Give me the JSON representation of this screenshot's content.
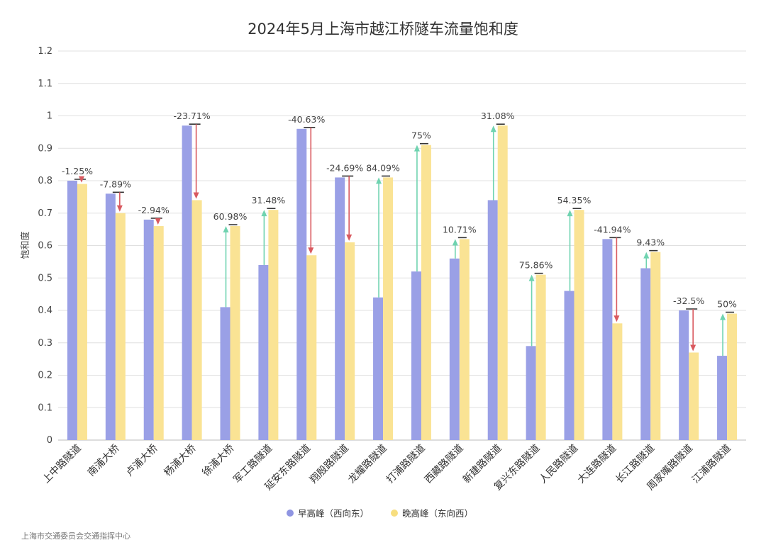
{
  "chart_data": {
    "type": "bar",
    "title": "2024年5月上海市越江桥隧车流量饱和度",
    "ylabel": "饱和度",
    "ylim": [
      0,
      1.2
    ],
    "yticks": [
      "0",
      "0.1",
      "0.2",
      "0.3",
      "0.4",
      "0.5",
      "0.6",
      "0.7",
      "0.8",
      "0.9",
      "1",
      "1.1",
      "1.2"
    ],
    "grid": true,
    "legend_position": "bottom",
    "categories": [
      "上中路隧道",
      "南浦大桥",
      "卢浦大桥",
      "杨浦大桥",
      "徐浦大桥",
      "军工路隧道",
      "延安东路隧道",
      "翔殷路隧道",
      "龙耀路隧道",
      "打浦路隧道",
      "西藏路隧道",
      "新建路隧道",
      "复兴东路隧道",
      "人民路隧道",
      "大连路隧道",
      "长江路隧道",
      "周家嘴路隧道",
      "江浦路隧道"
    ],
    "series": [
      {
        "name": "早高峰（西向东）",
        "color": "#9aa0e6",
        "values": [
          0.8,
          0.76,
          0.68,
          0.97,
          0.41,
          0.54,
          0.96,
          0.81,
          0.44,
          0.52,
          0.56,
          0.74,
          0.29,
          0.46,
          0.62,
          0.53,
          0.4,
          0.26
        ]
      },
      {
        "name": "晚高峰（东向西）",
        "color": "#fae394",
        "values": [
          0.79,
          0.7,
          0.66,
          0.74,
          0.66,
          0.71,
          0.57,
          0.61,
          0.81,
          0.91,
          0.62,
          0.97,
          0.51,
          0.71,
          0.36,
          0.58,
          0.27,
          0.39
        ]
      }
    ],
    "change_labels": [
      "-1.25%",
      "-7.89%",
      "-2.94%",
      "-23.71%",
      "60.98%",
      "31.48%",
      "-40.63%",
      "-24.69%",
      "84.09%",
      "75%",
      "10.71%",
      "31.08%",
      "75.86%",
      "54.35%",
      "-41.94%",
      "9.43%",
      "-32.5%",
      "50%"
    ],
    "increase_color": "#6fd3b0",
    "decrease_color": "#d9595f"
  },
  "source": "上海市交通委员会交通指挥中心"
}
